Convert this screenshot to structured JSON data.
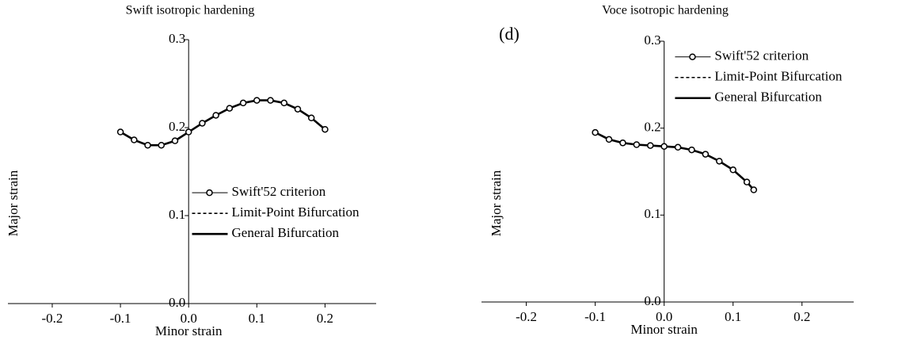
{
  "chart_data": [
    {
      "type": "line",
      "title": "Swift isotropic hardening",
      "x_label": "Minor strain",
      "y_label": "Major strain",
      "x": [
        -0.1,
        -0.08,
        -0.06,
        -0.04,
        -0.02,
        0,
        0.02,
        0.04,
        0.06,
        0.08,
        0.1,
        0.12,
        0.14,
        0.16,
        0.18,
        0.2
      ],
      "series": [
        {
          "name": "Swift'52 criterion",
          "color": "#000000",
          "linestyle": "solid",
          "marker": "circle",
          "values": [
            0.195,
            0.186,
            0.18,
            0.18,
            0.185,
            0.195,
            0.205,
            0.214,
            0.222,
            0.228,
            0.231,
            0.231,
            0.228,
            0.221,
            0.211,
            0.198
          ]
        },
        {
          "name": "Limit-Point Bifurcation",
          "color": "#000000",
          "linestyle": "dashed",
          "marker": "none",
          "values": [
            0.195,
            0.186,
            0.18,
            0.18,
            0.185,
            0.195,
            0.205,
            0.214,
            0.222,
            0.228,
            0.231,
            0.231,
            0.228,
            0.221,
            0.211,
            0.198
          ]
        },
        {
          "name": "General Bifurcation",
          "color": "#000000",
          "linestyle": "solid",
          "marker": "none",
          "values": [
            0.195,
            0.186,
            0.18,
            0.18,
            0.185,
            0.195,
            0.205,
            0.214,
            0.222,
            0.228,
            0.231,
            0.231,
            0.228,
            0.221,
            0.211,
            0.198
          ]
        }
      ],
      "xlim": [
        -0.265,
        0.275
      ],
      "ylim": [
        0,
        0.3
      ],
      "xticks": [
        -0.2,
        -0.1,
        {
          "value": 0,
          "label": "0.0"
        },
        0.1,
        0.2
      ],
      "yticks": [
        {
          "value": 0,
          "label": "0.0"
        },
        0.1,
        0.2,
        0.3
      ],
      "legend": "center"
    },
    {
      "type": "line",
      "title": "Voce isotropic hardening",
      "annotation": "(d)",
      "x_label": "Minor strain",
      "y_label": "Major strain",
      "x": [
        -0.1,
        -0.08,
        -0.06,
        -0.04,
        -0.02,
        0,
        0.02,
        0.04,
        0.06,
        0.08,
        0.1,
        0.12,
        0.13
      ],
      "series": [
        {
          "name": "Swift'52 criterion",
          "color": "#000000",
          "linestyle": "solid",
          "marker": "circle",
          "values": [
            0.195,
            0.187,
            0.183,
            0.181,
            0.18,
            0.179,
            0.178,
            0.175,
            0.17,
            0.162,
            0.152,
            0.138,
            0.129
          ]
        },
        {
          "name": "Limit-Point Bifurcation",
          "color": "#000000",
          "linestyle": "dashed",
          "marker": "none",
          "values": [
            0.195,
            0.187,
            0.183,
            0.181,
            0.18,
            0.179,
            0.178,
            0.175,
            0.17,
            0.162,
            0.152,
            0.138,
            0.129
          ]
        },
        {
          "name": "General Bifurcation",
          "color": "#000000",
          "linestyle": "solid",
          "marker": "none",
          "values": [
            0.195,
            0.187,
            0.183,
            0.181,
            0.18,
            0.179,
            0.178,
            0.175,
            0.17,
            0.162,
            0.152,
            0.138,
            0.129
          ]
        }
      ],
      "xlim": [
        -0.265,
        0.275
      ],
      "ylim": [
        0,
        0.3
      ],
      "xticks": [
        -0.2,
        -0.1,
        {
          "value": 0,
          "label": "0.0"
        },
        0.1,
        0.2
      ],
      "yticks": [
        {
          "value": 0,
          "label": "0.0"
        },
        0.1,
        0.2,
        0.3
      ],
      "legend": "upper right"
    }
  ]
}
